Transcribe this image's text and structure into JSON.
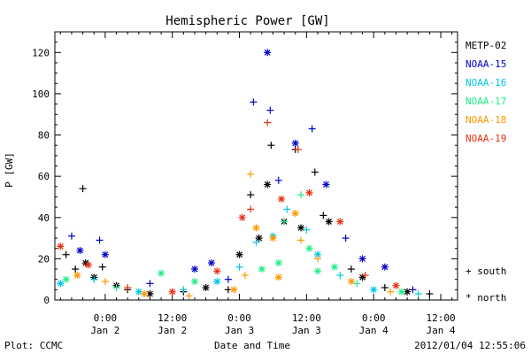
{
  "chart_data": {
    "type": "scatter",
    "title": "Hemispheric Power [GW]",
    "xlabel": "Date and Time",
    "ylabel": "P [GW]",
    "xlim": [
      "2012-01-01T15:00",
      "2012-01-04T15:00"
    ],
    "ylim": [
      0,
      130
    ],
    "yticks": [
      0,
      20,
      40,
      60,
      80,
      100,
      120
    ],
    "xticks": [
      {
        "t": "2012-01-02T00:00",
        "top": "0:00",
        "bottom": "Jan 2"
      },
      {
        "t": "2012-01-02T12:00",
        "top": "12:00",
        "bottom": "Jan 2"
      },
      {
        "t": "2012-01-03T00:00",
        "top": "0:00",
        "bottom": "Jan 3"
      },
      {
        "t": "2012-01-03T12:00",
        "top": "12:00",
        "bottom": "Jan 3"
      },
      {
        "t": "2012-01-04T00:00",
        "top": "0:00",
        "bottom": "Jan 4"
      },
      {
        "t": "2012-01-04T12:00",
        "top": "12:00",
        "bottom": "Jan 4"
      }
    ],
    "marker_legend": [
      {
        "symbol": "+",
        "label": "south"
      },
      {
        "symbol": "*",
        "label": "north"
      }
    ],
    "series": [
      {
        "name": "METP-02",
        "color": "#000000",
        "points": [
          {
            "t": "2012-01-01T17:00",
            "y": 22,
            "m": "+"
          },
          {
            "t": "2012-01-01T18:40",
            "y": 15,
            "m": "+"
          },
          {
            "t": "2012-01-01T20:00",
            "y": 54,
            "m": "+"
          },
          {
            "t": "2012-01-01T20:30",
            "y": 18,
            "m": "*"
          },
          {
            "t": "2012-01-01T22:00",
            "y": 11,
            "m": "*"
          },
          {
            "t": "2012-01-01T23:30",
            "y": 16,
            "m": "+"
          },
          {
            "t": "2012-01-02T02:00",
            "y": 7,
            "m": "*"
          },
          {
            "t": "2012-01-02T04:00",
            "y": 5,
            "m": "+"
          },
          {
            "t": "2012-01-02T08:00",
            "y": 3,
            "m": "*"
          },
          {
            "t": "2012-01-02T14:00",
            "y": 4,
            "m": "+"
          },
          {
            "t": "2012-01-02T18:00",
            "y": 6,
            "m": "*"
          },
          {
            "t": "2012-01-02T22:00",
            "y": 5,
            "m": "+"
          },
          {
            "t": "2012-01-03T00:00",
            "y": 22,
            "m": "*"
          },
          {
            "t": "2012-01-03T02:00",
            "y": 51,
            "m": "+"
          },
          {
            "t": "2012-01-03T03:30",
            "y": 30,
            "m": "*"
          },
          {
            "t": "2012-01-03T05:00",
            "y": 56,
            "m": "*"
          },
          {
            "t": "2012-01-03T05:40",
            "y": 75,
            "m": "+"
          },
          {
            "t": "2012-01-03T08:00",
            "y": 38,
            "m": "*"
          },
          {
            "t": "2012-01-03T10:00",
            "y": 73,
            "m": "+"
          },
          {
            "t": "2012-01-03T11:00",
            "y": 35,
            "m": "*"
          },
          {
            "t": "2012-01-03T13:30",
            "y": 62,
            "m": "+"
          },
          {
            "t": "2012-01-03T15:00",
            "y": 41,
            "m": "+"
          },
          {
            "t": "2012-01-03T16:00",
            "y": 38,
            "m": "*"
          },
          {
            "t": "2012-01-03T20:00",
            "y": 15,
            "m": "+"
          },
          {
            "t": "2012-01-03T22:00",
            "y": 11,
            "m": "*"
          },
          {
            "t": "2012-01-04T02:00",
            "y": 6,
            "m": "+"
          },
          {
            "t": "2012-01-04T06:00",
            "y": 4,
            "m": "*"
          },
          {
            "t": "2012-01-04T10:00",
            "y": 3,
            "m": "+"
          }
        ]
      },
      {
        "name": "NOAA-15",
        "color": "#0000cc",
        "points": [
          {
            "t": "2012-01-01T18:00",
            "y": 31,
            "m": "+"
          },
          {
            "t": "2012-01-01T19:30",
            "y": 24,
            "m": "*"
          },
          {
            "t": "2012-01-01T23:00",
            "y": 29,
            "m": "+"
          },
          {
            "t": "2012-01-02T00:00",
            "y": 22,
            "m": "*"
          },
          {
            "t": "2012-01-02T08:00",
            "y": 8,
            "m": "+"
          },
          {
            "t": "2012-01-02T16:00",
            "y": 15,
            "m": "*"
          },
          {
            "t": "2012-01-02T19:00",
            "y": 18,
            "m": "*"
          },
          {
            "t": "2012-01-02T22:00",
            "y": 10,
            "m": "+"
          },
          {
            "t": "2012-01-03T02:30",
            "y": 96,
            "m": "+"
          },
          {
            "t": "2012-01-03T05:00",
            "y": 120,
            "m": "*"
          },
          {
            "t": "2012-01-03T05:30",
            "y": 92,
            "m": "+"
          },
          {
            "t": "2012-01-03T07:00",
            "y": 58,
            "m": "+"
          },
          {
            "t": "2012-01-03T10:00",
            "y": 76,
            "m": "*"
          },
          {
            "t": "2012-01-03T13:00",
            "y": 83,
            "m": "+"
          },
          {
            "t": "2012-01-03T15:30",
            "y": 56,
            "m": "*"
          },
          {
            "t": "2012-01-03T19:00",
            "y": 30,
            "m": "+"
          },
          {
            "t": "2012-01-03T22:00",
            "y": 20,
            "m": "*"
          },
          {
            "t": "2012-01-04T02:00",
            "y": 16,
            "m": "*"
          },
          {
            "t": "2012-01-04T07:00",
            "y": 5,
            "m": "+"
          }
        ]
      },
      {
        "name": "NOAA-16",
        "color": "#00c8e6",
        "points": [
          {
            "t": "2012-01-01T16:00",
            "y": 8,
            "m": "*"
          },
          {
            "t": "2012-01-01T22:00",
            "y": 10,
            "m": "+"
          },
          {
            "t": "2012-01-02T06:00",
            "y": 4,
            "m": "*"
          },
          {
            "t": "2012-01-02T14:00",
            "y": 5,
            "m": "+"
          },
          {
            "t": "2012-01-02T20:00",
            "y": 9,
            "m": "*"
          },
          {
            "t": "2012-01-03T00:00",
            "y": 16,
            "m": "+"
          },
          {
            "t": "2012-01-03T03:00",
            "y": 28,
            "m": "+"
          },
          {
            "t": "2012-01-03T06:00",
            "y": 31,
            "m": "*"
          },
          {
            "t": "2012-01-03T08:30",
            "y": 44,
            "m": "+"
          },
          {
            "t": "2012-01-03T12:00",
            "y": 34,
            "m": "+"
          },
          {
            "t": "2012-01-03T14:00",
            "y": 22,
            "m": "*"
          },
          {
            "t": "2012-01-03T18:00",
            "y": 12,
            "m": "+"
          },
          {
            "t": "2012-01-04T00:00",
            "y": 5,
            "m": "*"
          },
          {
            "t": "2012-01-04T08:00",
            "y": 3,
            "m": "+"
          }
        ]
      },
      {
        "name": "NOAA-17",
        "color": "#22ee88",
        "points": [
          {
            "t": "2012-01-01T17:00",
            "y": 10,
            "m": "*"
          },
          {
            "t": "2012-01-02T02:00",
            "y": 6,
            "m": "+"
          },
          {
            "t": "2012-01-02T10:00",
            "y": 13,
            "m": "*"
          },
          {
            "t": "2012-01-02T16:00",
            "y": 9,
            "m": "*"
          },
          {
            "t": "2012-01-03T04:00",
            "y": 15,
            "m": "*"
          },
          {
            "t": "2012-01-03T07:00",
            "y": 18,
            "m": "*"
          },
          {
            "t": "2012-01-03T08:00",
            "y": 38,
            "m": "+"
          },
          {
            "t": "2012-01-03T11:00",
            "y": 51,
            "m": "+"
          },
          {
            "t": "2012-01-03T12:30",
            "y": 25,
            "m": "*"
          },
          {
            "t": "2012-01-03T14:00",
            "y": 14,
            "m": "*"
          },
          {
            "t": "2012-01-03T17:00",
            "y": 16,
            "m": "*"
          },
          {
            "t": "2012-01-03T21:00",
            "y": 8,
            "m": "+"
          },
          {
            "t": "2012-01-04T05:00",
            "y": 4,
            "m": "*"
          }
        ]
      },
      {
        "name": "NOAA-18",
        "color": "#ff9900",
        "points": [
          {
            "t": "2012-01-01T19:00",
            "y": 12,
            "m": "*"
          },
          {
            "t": "2012-01-02T00:00",
            "y": 9,
            "m": "+"
          },
          {
            "t": "2012-01-02T07:00",
            "y": 3,
            "m": "*"
          },
          {
            "t": "2012-01-02T15:00",
            "y": 2,
            "m": "+"
          },
          {
            "t": "2012-01-02T23:00",
            "y": 5,
            "m": "*"
          },
          {
            "t": "2012-01-03T01:00",
            "y": 12,
            "m": "+"
          },
          {
            "t": "2012-01-03T02:00",
            "y": 61,
            "m": "+"
          },
          {
            "t": "2012-01-03T03:00",
            "y": 35,
            "m": "*"
          },
          {
            "t": "2012-01-03T06:00",
            "y": 30,
            "m": "*"
          },
          {
            "t": "2012-01-03T07:00",
            "y": 11,
            "m": "*"
          },
          {
            "t": "2012-01-03T10:00",
            "y": 42,
            "m": "*"
          },
          {
            "t": "2012-01-03T11:00",
            "y": 29,
            "m": "+"
          },
          {
            "t": "2012-01-03T14:00",
            "y": 20,
            "m": "+"
          },
          {
            "t": "2012-01-03T20:00",
            "y": 9,
            "m": "*"
          },
          {
            "t": "2012-01-04T03:00",
            "y": 4,
            "m": "+"
          }
        ]
      },
      {
        "name": "NOAA-19",
        "color": "#e83010",
        "points": [
          {
            "t": "2012-01-01T16:00",
            "y": 26,
            "m": "*"
          },
          {
            "t": "2012-01-01T21:00",
            "y": 17,
            "m": "*"
          },
          {
            "t": "2012-01-02T04:00",
            "y": 6,
            "m": "+"
          },
          {
            "t": "2012-01-02T12:00",
            "y": 4,
            "m": "*"
          },
          {
            "t": "2012-01-02T20:00",
            "y": 14,
            "m": "*"
          },
          {
            "t": "2012-01-03T00:30",
            "y": 40,
            "m": "*"
          },
          {
            "t": "2012-01-03T02:00",
            "y": 44,
            "m": "+"
          },
          {
            "t": "2012-01-03T05:00",
            "y": 86,
            "m": "+"
          },
          {
            "t": "2012-01-03T07:30",
            "y": 49,
            "m": "*"
          },
          {
            "t": "2012-01-03T10:30",
            "y": 73,
            "m": "+"
          },
          {
            "t": "2012-01-03T12:30",
            "y": 52,
            "m": "*"
          },
          {
            "t": "2012-01-03T18:00",
            "y": 38,
            "m": "*"
          },
          {
            "t": "2012-01-03T22:30",
            "y": 12,
            "m": "+"
          },
          {
            "t": "2012-01-04T04:00",
            "y": 7,
            "m": "*"
          }
        ]
      }
    ]
  },
  "footer": {
    "source": "Plot: CCMC",
    "timestamp": "2012/01/04 12:55:06"
  }
}
